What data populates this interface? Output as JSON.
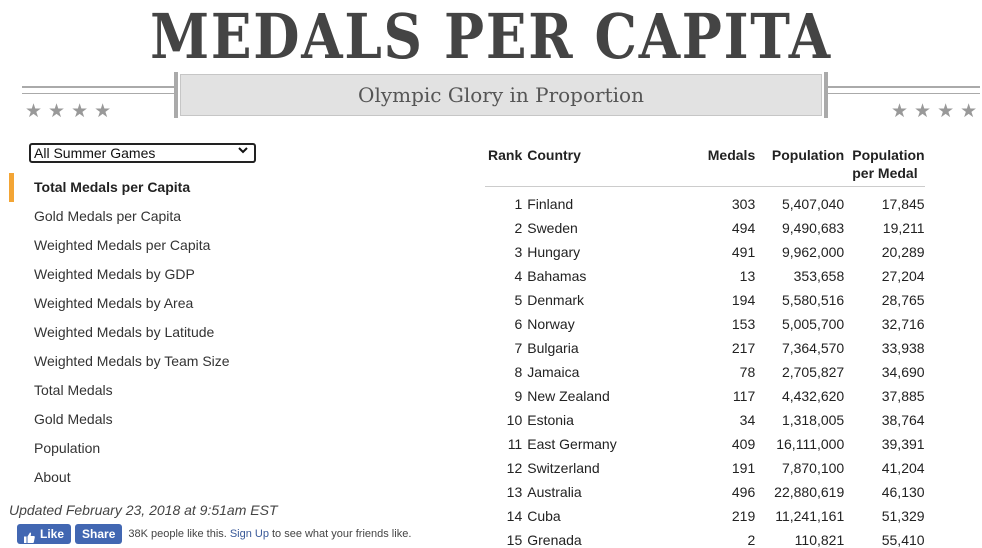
{
  "header": {
    "title": "MEDALS PER CAPITA",
    "subtitle": "Olympic Glory in Proportion",
    "stars": "★★★★"
  },
  "filter": {
    "selected": "All Summer Games"
  },
  "nav": {
    "items": [
      {
        "label": "Total Medals per Capita",
        "active": true
      },
      {
        "label": "Gold Medals per Capita"
      },
      {
        "label": "Weighted Medals per Capita"
      },
      {
        "label": "Weighted Medals by GDP"
      },
      {
        "label": "Weighted Medals by Area"
      },
      {
        "label": "Weighted Medals by Latitude"
      },
      {
        "label": "Weighted Medals by Team Size"
      },
      {
        "label": "Total Medals"
      },
      {
        "label": "Gold Medals"
      },
      {
        "label": "Population"
      },
      {
        "label": "About"
      }
    ],
    "accent_color": "#f3a535"
  },
  "updated": "Updated February 23, 2018 at 9:51am EST",
  "facebook": {
    "like_label": "Like",
    "share_label": "Share",
    "text_before": "38K people like this.",
    "signup_label": "Sign Up",
    "text_after": "to see what your friends like.",
    "brand_color": "#4267b2"
  },
  "table": {
    "headers": {
      "rank": "Rank",
      "country": "Country",
      "medals": "Medals",
      "population": "Population",
      "ppm_line1": "Population",
      "ppm_line2": "per Medal"
    },
    "rows": [
      {
        "rank": "1",
        "country": "Finland",
        "medals": "303",
        "population": "5,407,040",
        "ppm": "17,845"
      },
      {
        "rank": "2",
        "country": "Sweden",
        "medals": "494",
        "population": "9,490,683",
        "ppm": "19,211"
      },
      {
        "rank": "3",
        "country": "Hungary",
        "medals": "491",
        "population": "9,962,000",
        "ppm": "20,289"
      },
      {
        "rank": "4",
        "country": "Bahamas",
        "medals": "13",
        "population": "353,658",
        "ppm": "27,204"
      },
      {
        "rank": "5",
        "country": "Denmark",
        "medals": "194",
        "population": "5,580,516",
        "ppm": "28,765"
      },
      {
        "rank": "6",
        "country": "Norway",
        "medals": "153",
        "population": "5,005,700",
        "ppm": "32,716"
      },
      {
        "rank": "7",
        "country": "Bulgaria",
        "medals": "217",
        "population": "7,364,570",
        "ppm": "33,938"
      },
      {
        "rank": "8",
        "country": "Jamaica",
        "medals": "78",
        "population": "2,705,827",
        "ppm": "34,690"
      },
      {
        "rank": "9",
        "country": "New Zealand",
        "medals": "117",
        "population": "4,432,620",
        "ppm": "37,885"
      },
      {
        "rank": "10",
        "country": "Estonia",
        "medals": "34",
        "population": "1,318,005",
        "ppm": "38,764"
      },
      {
        "rank": "11",
        "country": "East Germany",
        "medals": "409",
        "population": "16,111,000",
        "ppm": "39,391"
      },
      {
        "rank": "12",
        "country": "Switzerland",
        "medals": "191",
        "population": "7,870,100",
        "ppm": "41,204"
      },
      {
        "rank": "13",
        "country": "Australia",
        "medals": "496",
        "population": "22,880,619",
        "ppm": "46,130"
      },
      {
        "rank": "14",
        "country": "Cuba",
        "medals": "219",
        "population": "11,241,161",
        "ppm": "51,329"
      },
      {
        "rank": "15",
        "country": "Grenada",
        "medals": "2",
        "population": "110,821",
        "ppm": "55,410"
      }
    ]
  }
}
